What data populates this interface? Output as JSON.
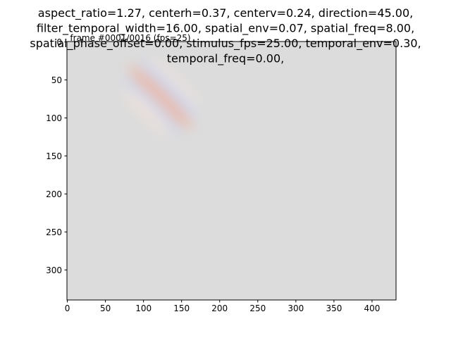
{
  "chart_data": {
    "type": "image",
    "title": [
      "aspect_ratio=1.27, centerh=0.37, centerv=0.24, direction=45.00,",
      "filter_temporal_width=16.00, spatial_env=0.07, spatial_freq=8.00,",
      "spatial_phase_offset=0.00, stimulus_fps=25.00, temporal_env=0.30,",
      "temporal_freq=0.00,"
    ],
    "subtitle": "frame #0001/0016 (fps=25)",
    "xlim": [
      -0.5,
      431.5
    ],
    "ylim": [
      339.5,
      -0.5
    ],
    "xticks": [
      0,
      50,
      100,
      150,
      200,
      250,
      300,
      350,
      400
    ],
    "yticks": [
      0,
      50,
      100,
      150,
      200,
      250,
      300
    ],
    "background": "#dcdcdc"
  }
}
